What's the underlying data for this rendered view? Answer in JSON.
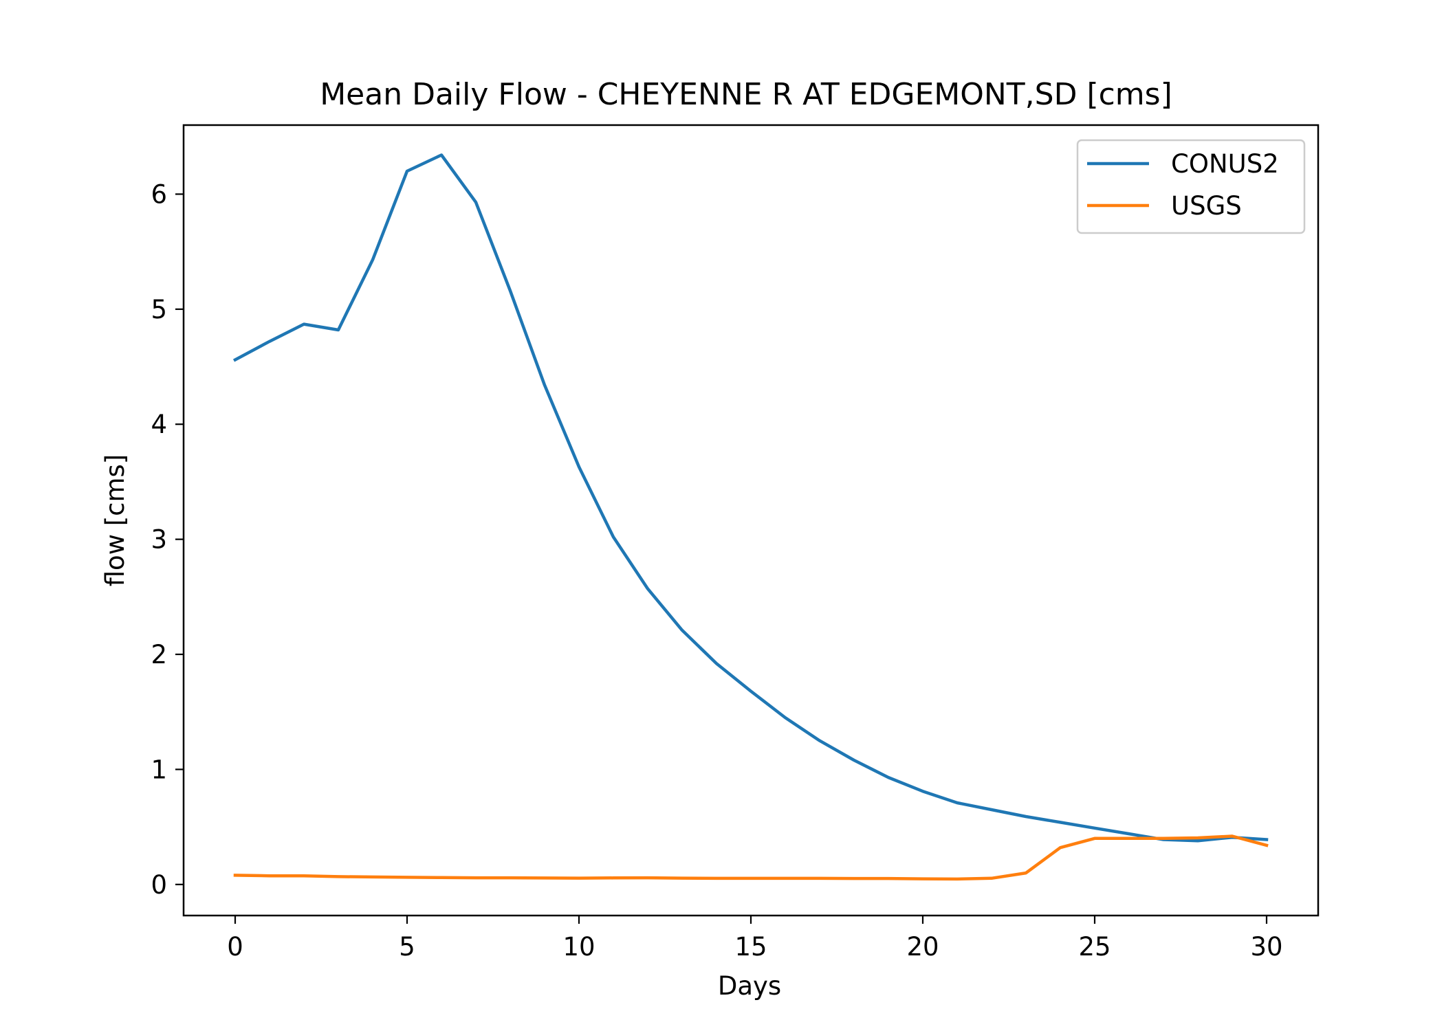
{
  "chart_data": {
    "type": "line",
    "title": "Mean Daily Flow - CHEYENNE R AT EDGEMONT,SD [cms]",
    "xlabel": "Days",
    "ylabel": "flow [cms]",
    "xlim": [
      -1.5,
      31.5
    ],
    "ylim": [
      -0.27,
      6.6
    ],
    "xticks": [
      0,
      5,
      10,
      15,
      20,
      25,
      30
    ],
    "yticks": [
      0,
      1,
      2,
      3,
      4,
      5,
      6
    ],
    "grid": false,
    "legend_position": "top-right",
    "x": [
      0,
      1,
      2,
      3,
      4,
      5,
      6,
      7,
      8,
      9,
      10,
      11,
      12,
      13,
      14,
      15,
      16,
      17,
      18,
      19,
      20,
      21,
      22,
      23,
      24,
      25,
      26,
      27,
      28,
      29,
      30
    ],
    "series": [
      {
        "name": "CONUS2",
        "color": "#1f77b4",
        "values": [
          4.56,
          4.72,
          4.87,
          4.82,
          5.43,
          6.2,
          6.34,
          5.93,
          5.16,
          4.34,
          3.63,
          3.02,
          2.57,
          2.21,
          1.92,
          1.68,
          1.45,
          1.25,
          1.08,
          0.93,
          0.81,
          0.71,
          0.65,
          0.59,
          0.54,
          0.49,
          0.44,
          0.39,
          0.38,
          0.41,
          0.39
        ]
      },
      {
        "name": "USGS",
        "color": "#ff7f0e",
        "values": [
          0.08,
          0.075,
          0.075,
          0.068,
          0.065,
          0.062,
          0.06,
          0.058,
          0.058,
          0.056,
          0.055,
          0.057,
          0.058,
          0.055,
          0.053,
          0.053,
          0.053,
          0.053,
          0.052,
          0.052,
          0.049,
          0.047,
          0.054,
          0.1,
          0.32,
          0.4,
          0.4,
          0.4,
          0.405,
          0.42,
          0.34
        ]
      }
    ]
  }
}
